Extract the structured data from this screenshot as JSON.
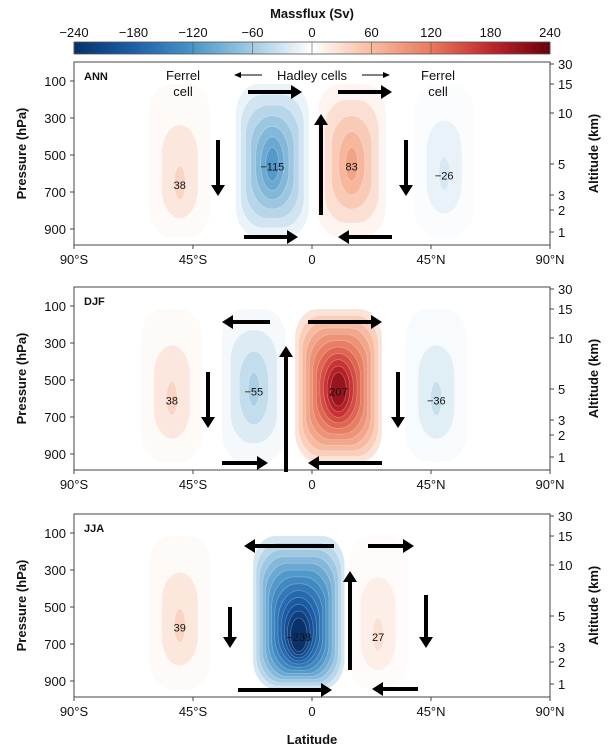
{
  "chart_data": {
    "type": "heatmap",
    "colorbar": {
      "title": "Massflux (Sv)",
      "ticks": [
        "−240",
        "−180",
        "−120",
        "−60",
        "0",
        "60",
        "120",
        "180",
        "240"
      ],
      "range": [
        -240,
        240
      ],
      "colors": {
        "negative": "#08306b",
        "neutral": "#ffffff",
        "positive": "#67000d"
      }
    },
    "x_axis": {
      "label": "Latitude",
      "ticks": [
        "90°S",
        "45°S",
        "0",
        "45°N",
        "90°N"
      ],
      "range": [
        -90,
        90
      ]
    },
    "y_axis_left": {
      "label": "Pressure (hPa)",
      "ticks": [
        "100",
        "300",
        "500",
        "700",
        "900"
      ],
      "range": [
        1000,
        0
      ]
    },
    "y_axis_right": {
      "label": "Altitude (km)",
      "ticks": [
        "30",
        "15",
        "10",
        "5",
        "3",
        "2",
        "1"
      ]
    },
    "panels": [
      {
        "label": "ANN",
        "annotations": {
          "ferrel_left": [
            "Ferrel",
            "cell"
          ],
          "hadley": "Hadley cells",
          "ferrel_right": [
            "Ferrel",
            "cell"
          ]
        },
        "cells": [
          {
            "lat": -50,
            "peak_pressure": 650,
            "value": 38,
            "label": "38"
          },
          {
            "lat": -15,
            "peak_pressure": 550,
            "value": -115,
            "label": "−115"
          },
          {
            "lat": 15,
            "peak_pressure": 550,
            "value": 83,
            "label": "83"
          },
          {
            "lat": 50,
            "peak_pressure": 600,
            "value": -26,
            "label": "−26"
          }
        ]
      },
      {
        "label": "DJF",
        "annotations": {},
        "cells": [
          {
            "lat": -53,
            "peak_pressure": 600,
            "value": 38,
            "label": "38"
          },
          {
            "lat": -22,
            "peak_pressure": 550,
            "value": -55,
            "label": "−55"
          },
          {
            "lat": 10,
            "peak_pressure": 550,
            "value": 207,
            "label": "207"
          },
          {
            "lat": 47,
            "peak_pressure": 600,
            "value": -36,
            "label": "−36"
          }
        ]
      },
      {
        "label": "JJA",
        "annotations": {},
        "cells": [
          {
            "lat": -50,
            "peak_pressure": 600,
            "value": 39,
            "label": "39"
          },
          {
            "lat": -5,
            "peak_pressure": 650,
            "value": -238,
            "label": "−238"
          },
          {
            "lat": 25,
            "peak_pressure": 650,
            "value": 27,
            "label": "27"
          }
        ]
      }
    ]
  }
}
